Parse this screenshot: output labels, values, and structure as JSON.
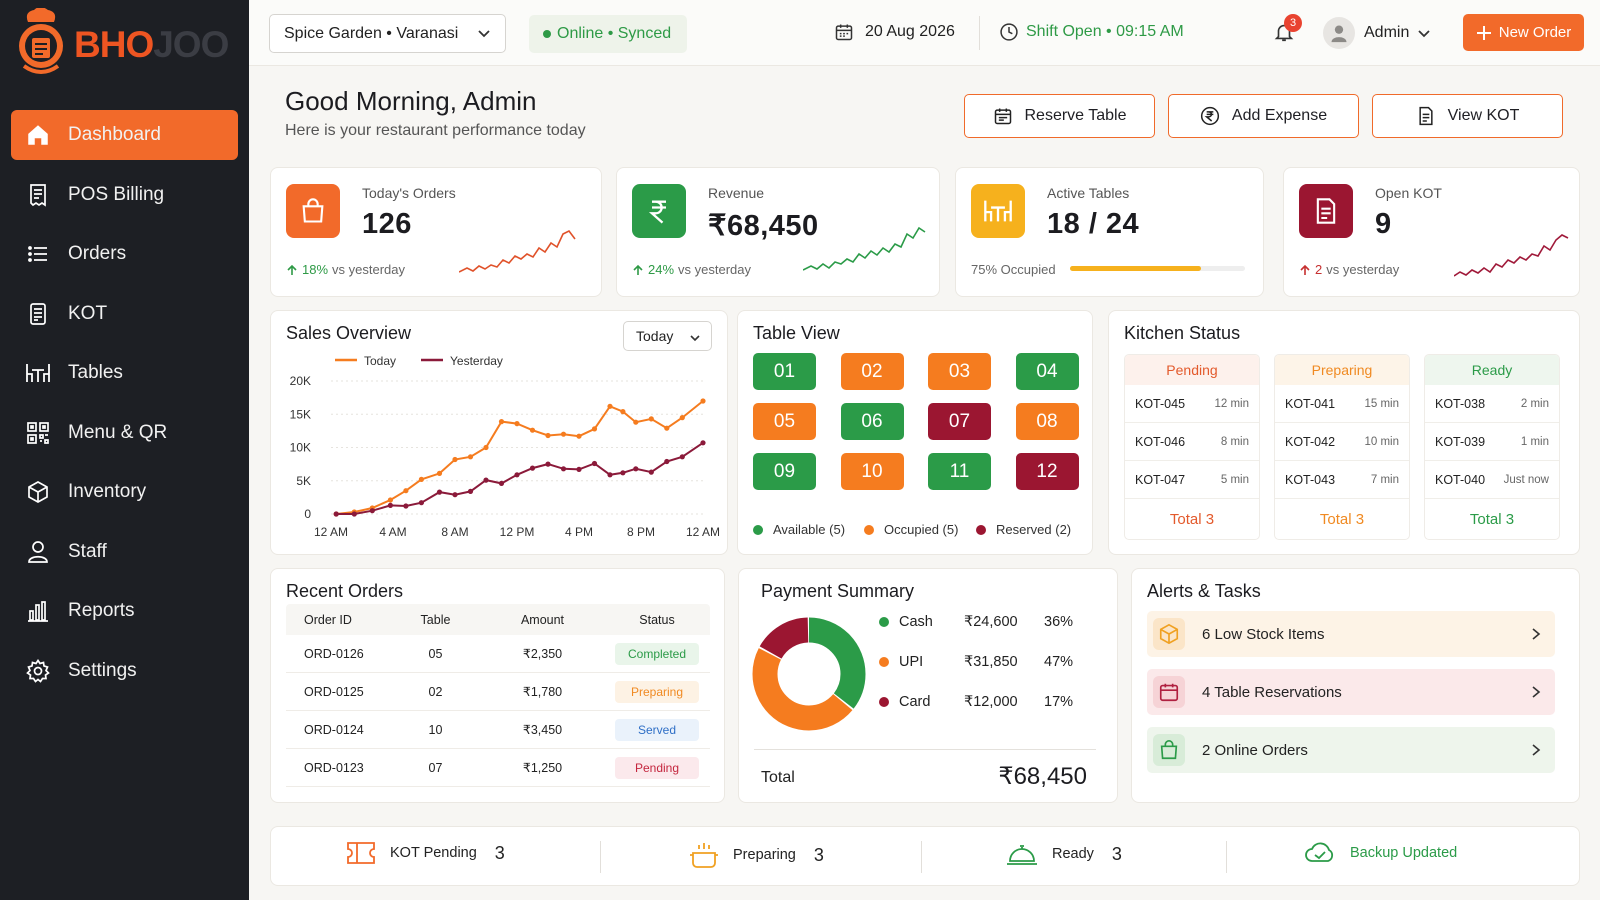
{
  "brand": {
    "part_a": "BHO",
    "part_b": "JOO",
    "accent": "#f26a2a",
    "sidebar_bg": "#1d1f24"
  },
  "sidebar": {
    "items": [
      {
        "label": "Dashboard",
        "icon": "home-icon",
        "active": true
      },
      {
        "label": "POS Billing",
        "icon": "receipt-icon"
      },
      {
        "label": "Orders",
        "icon": "list-icon"
      },
      {
        "label": "KOT",
        "icon": "document-icon"
      },
      {
        "label": "Tables",
        "icon": "table-icon"
      },
      {
        "label": "Menu & QR",
        "icon": "qr-icon"
      },
      {
        "label": "Inventory",
        "icon": "box-icon"
      },
      {
        "label": "Staff",
        "icon": "user-icon"
      },
      {
        "label": "Reports",
        "icon": "bar-chart-icon"
      },
      {
        "label": "Settings",
        "icon": "gear-icon"
      }
    ]
  },
  "topbar": {
    "outlet": "Spice Garden • Varanasi",
    "status": "Online • Synced",
    "date": "20 Aug 2026",
    "shift": "Shift Open • 09:15 AM",
    "notifications": "3",
    "user": "Admin",
    "new_order": "New Order"
  },
  "greeting": {
    "title": "Good Morning, Admin",
    "subtitle": "Here is your restaurant performance today"
  },
  "actions": {
    "reserve": "Reserve Table",
    "expense": "Add Expense",
    "kot": "View KOT"
  },
  "stats": {
    "orders": {
      "label": "Today's Orders",
      "value": "126",
      "delta": "18%",
      "suffix": "vs yesterday"
    },
    "revenue": {
      "label": "Revenue",
      "value": "₹68,450",
      "delta": "24%",
      "suffix": "vs yesterday"
    },
    "tables": {
      "label": "Active Tables",
      "value": "18 / 24",
      "footer": "75% Occupied",
      "occupancy": 0.75
    },
    "kot": {
      "label": "Open KOT",
      "value": "9",
      "delta": "2",
      "suffix": "vs yesterday"
    }
  },
  "sales": {
    "title": "Sales Overview",
    "range": "Today"
  },
  "chart_data": {
    "type": "line",
    "x": [
      "12 AM",
      "4 AM",
      "8 AM",
      "12 PM",
      "4 PM",
      "8 PM",
      "12 AM"
    ],
    "yticks": [
      "20K",
      "15K",
      "10K",
      "5K",
      "0"
    ],
    "ylim": [
      0,
      20000
    ],
    "legend": "top",
    "grid": true,
    "series": [
      {
        "name": "Today",
        "color": "#f57c1f",
        "points": [
          [
            0.2,
            0
          ],
          [
            0.9,
            300
          ],
          [
            1.6,
            900
          ],
          [
            2.3,
            2100
          ],
          [
            2.9,
            3500
          ],
          [
            3.5,
            5200
          ],
          [
            4.2,
            6100
          ],
          [
            4.8,
            8200
          ],
          [
            5.4,
            8600
          ],
          [
            6.0,
            10000
          ],
          [
            6.6,
            13900
          ],
          [
            7.2,
            13600
          ],
          [
            7.8,
            12600
          ],
          [
            8.4,
            11800
          ],
          [
            9.0,
            12000
          ],
          [
            9.6,
            11700
          ],
          [
            10.2,
            12800
          ],
          [
            10.8,
            16200
          ],
          [
            11.3,
            15400
          ],
          [
            11.8,
            13800
          ],
          [
            12.4,
            14300
          ],
          [
            13.0,
            12900
          ],
          [
            13.6,
            14500
          ],
          [
            14.4,
            17000
          ]
        ]
      },
      {
        "name": "Yesterday",
        "color": "#8b1a3a",
        "points": [
          [
            0.2,
            0
          ],
          [
            0.9,
            0
          ],
          [
            1.6,
            500
          ],
          [
            2.3,
            1300
          ],
          [
            2.9,
            1200
          ],
          [
            3.5,
            1700
          ],
          [
            4.2,
            3300
          ],
          [
            4.8,
            2900
          ],
          [
            5.4,
            3400
          ],
          [
            6.0,
            5100
          ],
          [
            6.6,
            4600
          ],
          [
            7.2,
            5900
          ],
          [
            7.8,
            6900
          ],
          [
            8.4,
            7500
          ],
          [
            9.0,
            6800
          ],
          [
            9.6,
            6700
          ],
          [
            10.2,
            7600
          ],
          [
            10.8,
            5900
          ],
          [
            11.3,
            6200
          ],
          [
            11.8,
            6800
          ],
          [
            12.4,
            6300
          ],
          [
            13.0,
            7900
          ],
          [
            13.6,
            8600
          ],
          [
            14.4,
            10700
          ]
        ]
      }
    ]
  },
  "tables_view": {
    "title": "Table View",
    "colors": {
      "available": "#2b9b48",
      "occupied": "#f57c1f",
      "reserved": "#9b1631"
    },
    "tables": [
      {
        "no": "01",
        "state": "available"
      },
      {
        "no": "02",
        "state": "occupied"
      },
      {
        "no": "03",
        "state": "occupied"
      },
      {
        "no": "04",
        "state": "available"
      },
      {
        "no": "05",
        "state": "occupied"
      },
      {
        "no": "06",
        "state": "available"
      },
      {
        "no": "07",
        "state": "reserved"
      },
      {
        "no": "08",
        "state": "occupied"
      },
      {
        "no": "09",
        "state": "available"
      },
      {
        "no": "10",
        "state": "occupied"
      },
      {
        "no": "11",
        "state": "available"
      },
      {
        "no": "12",
        "state": "reserved"
      }
    ],
    "legend": {
      "available": "Available (5)",
      "occupied": "Occupied (5)",
      "reserved": "Reserved (2)"
    }
  },
  "kitchen": {
    "title": "Kitchen Status",
    "columns": [
      {
        "name": "Pending",
        "color": "#e35a2c",
        "bg": "#fdf1ec",
        "items": [
          [
            "KOT-045",
            "12 min"
          ],
          [
            "KOT-046",
            "8 min"
          ],
          [
            "KOT-047",
            "5 min"
          ]
        ],
        "total": "Total 3"
      },
      {
        "name": "Preparing",
        "color": "#f08a22",
        "bg": "#fdf4e8",
        "items": [
          [
            "KOT-041",
            "15 min"
          ],
          [
            "KOT-042",
            "10 min"
          ],
          [
            "KOT-043",
            "7 min"
          ]
        ],
        "total": "Total 3"
      },
      {
        "name": "Ready",
        "color": "#2b9b48",
        "bg": "#eef6ee",
        "items": [
          [
            "KOT-038",
            "2 min"
          ],
          [
            "KOT-039",
            "1 min"
          ],
          [
            "KOT-040",
            "Just now"
          ]
        ],
        "total": "Total 3"
      }
    ]
  },
  "recent": {
    "title": "Recent Orders",
    "headers": [
      "Order ID",
      "Table",
      "Amount",
      "Status"
    ],
    "rows": [
      {
        "id": "ORD-0126",
        "table": "05",
        "amount": "₹2,350",
        "status": "Completed",
        "fg": "#2b9b48",
        "bg": "#e9f5ea"
      },
      {
        "id": "ORD-0125",
        "table": "02",
        "amount": "₹1,780",
        "status": "Preparing",
        "fg": "#f08a22",
        "bg": "#fdf2e4"
      },
      {
        "id": "ORD-0124",
        "table": "10",
        "amount": "₹3,450",
        "status": "Served",
        "fg": "#2f6fc6",
        "bg": "#eaf2fb"
      },
      {
        "id": "ORD-0123",
        "table": "07",
        "amount": "₹1,250",
        "status": "Pending",
        "fg": "#c4263e",
        "bg": "#fbe9ec"
      }
    ]
  },
  "payment": {
    "title": "Payment Summary",
    "items": [
      {
        "name": "Cash",
        "amount": "₹24,600",
        "pct": "36%",
        "value": 36,
        "color": "#2b9b48"
      },
      {
        "name": "UPI",
        "amount": "₹31,850",
        "pct": "47%",
        "value": 47,
        "color": "#f57c1f"
      },
      {
        "name": "Card",
        "amount": "₹12,000",
        "pct": "17%",
        "value": 17,
        "color": "#9b1631"
      }
    ],
    "total_label": "Total",
    "total": "₹68,450"
  },
  "alerts": {
    "title": "Alerts & Tasks",
    "items": [
      {
        "label": "6 Low Stock Items",
        "icon": "box-icon",
        "bg": "#fdf3e6"
      },
      {
        "label": "4 Table Reservations",
        "icon": "calendar-icon",
        "bg": "#fbe9ea"
      },
      {
        "label": "2 Online Orders",
        "icon": "bag-icon",
        "bg": "#eef5ec"
      }
    ]
  },
  "bottom": {
    "kot_label": "KOT Pending",
    "kot_num": "3",
    "prep_label": "Preparing",
    "prep_num": "3",
    "ready_label": "Ready",
    "ready_num": "3",
    "backup": "Backup Updated"
  }
}
